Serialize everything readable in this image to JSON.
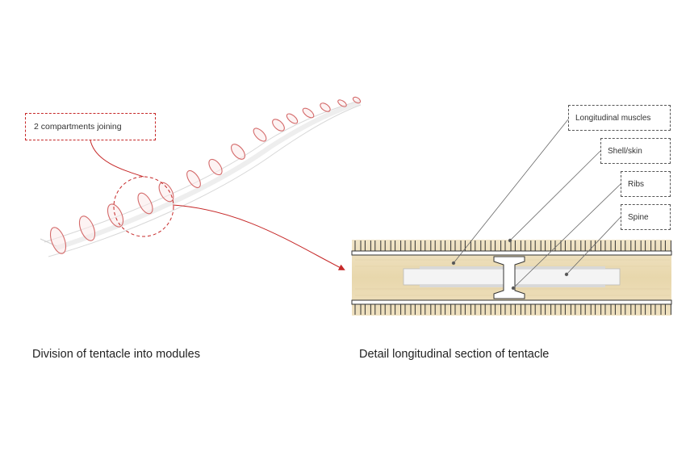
{
  "left_diagram": {
    "callout": "2 compartments joining",
    "caption": "Division of tentacle into modules"
  },
  "right_diagram": {
    "labels": {
      "longitudinal_muscles": "Longitudinal muscles",
      "shell_skin": "Shell/skin",
      "ribs": "Ribs",
      "spine": "Spine"
    },
    "caption": "Detail longitudinal section of tentacle"
  },
  "colors": {
    "accent_red": "#c62828",
    "section_fill": "#ecdcb6",
    "leader_gray": "#555555"
  }
}
